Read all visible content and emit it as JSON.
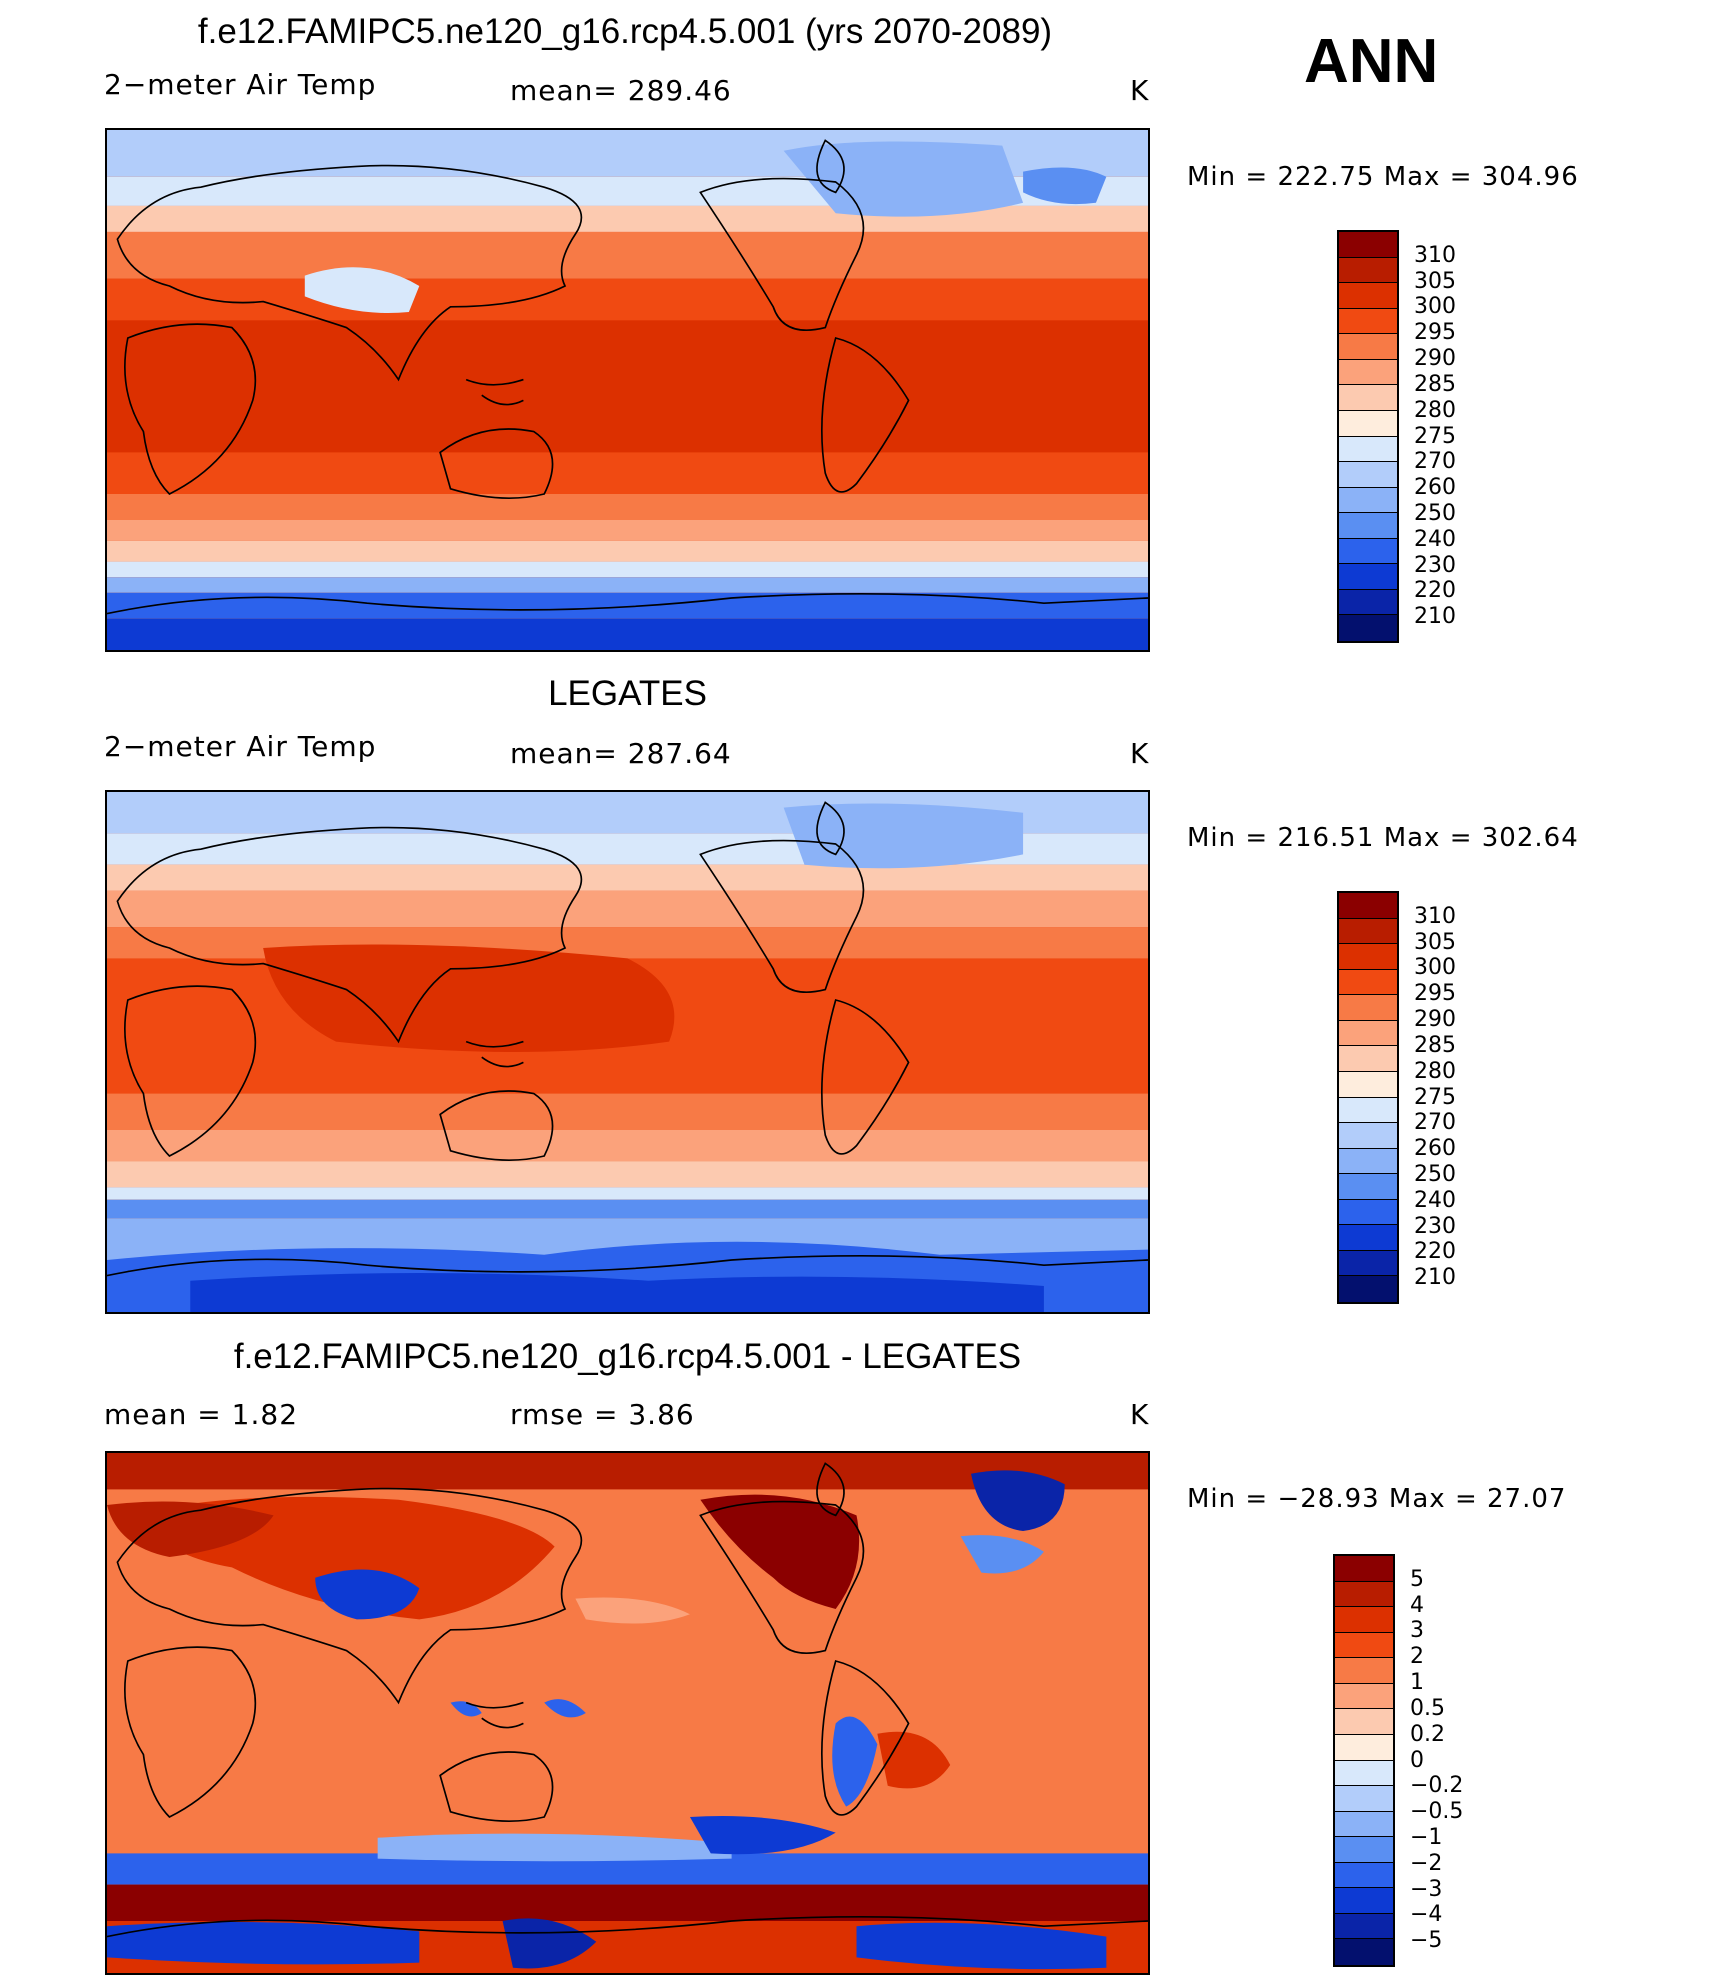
{
  "season": "ANN",
  "panels": [
    {
      "title": "f.e12.FAMIPC5.ne120_g16.rcp4.5.001 (yrs 2070-2089)",
      "left_label": "2−meter Air Temp",
      "center_label": "mean=  289.46",
      "units": "K",
      "minmax": "Min  =  222.75  Max  =  304.96",
      "map_name": "model-temperature-map"
    },
    {
      "title": "LEGATES",
      "left_label": "2−meter Air Temp",
      "center_label": "mean=  287.64",
      "units": "K",
      "minmax": "Min  =  216.51  Max  =  302.64",
      "map_name": "observed-temperature-map"
    },
    {
      "title": "f.e12.FAMIPC5.ne120_g16.rcp4.5.001 - LEGATES",
      "left_label": "mean  =      1.82",
      "center_label": "rmse  =      3.86",
      "units": "K",
      "minmax": "Min  =  −28.93  Max  =    27.07",
      "map_name": "difference-map"
    }
  ],
  "colorbars": {
    "temperature": {
      "labels": [
        "310",
        "305",
        "300",
        "295",
        "290",
        "285",
        "280",
        "275",
        "270",
        "260",
        "250",
        "240",
        "230",
        "220",
        "210"
      ],
      "colors": [
        "#8b0000",
        "#b81d00",
        "#dc3000",
        "#f04a12",
        "#f77a46",
        "#fba27b",
        "#fccab0",
        "#feeddd",
        "#d8e8fb",
        "#b2cdfa",
        "#8bb2f7",
        "#5a8ff2",
        "#2c62ec",
        "#0d3ad3",
        "#0a24a8",
        "#03106e"
      ]
    },
    "difference": {
      "labels": [
        "5",
        "4",
        "3",
        "2",
        "1",
        "0.5",
        "0.2",
        "0",
        "−0.2",
        "−0.5",
        "−1",
        "−2",
        "−3",
        "−4",
        "−5"
      ],
      "colors": [
        "#8b0000",
        "#b81d00",
        "#dc3000",
        "#f04a12",
        "#f77a46",
        "#fba27b",
        "#fccab0",
        "#feeddd",
        "#d8e8fb",
        "#b2cdfa",
        "#8bb2f7",
        "#5a8ff2",
        "#2c62ec",
        "#0d3ad3",
        "#0a24a8",
        "#03106e"
      ]
    }
  }
}
